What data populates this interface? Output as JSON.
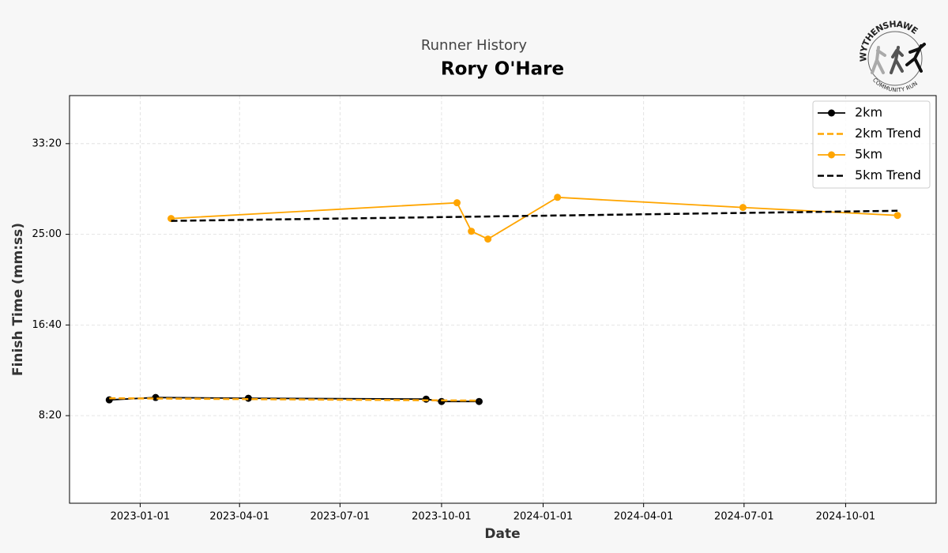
{
  "chart_data": {
    "type": "line",
    "suptitle": "Runner History",
    "title": "Rory O'Hare",
    "logo": {
      "top_text": "WYTHENSHAWE",
      "bottom_text": "COMMUNITY RUN"
    },
    "xlabel": "Date",
    "ylabel": "Finish Time (mm:ss)",
    "xlim": [
      "2022-10-29",
      "2024-12-22"
    ],
    "xticks": [
      "2023-01-01",
      "2023-04-01",
      "2023-07-01",
      "2023-10-01",
      "2024-01-01",
      "2024-04-01",
      "2024-07-01",
      "2024-10-01"
    ],
    "ylim": [
      17,
      2265
    ],
    "yticks": [
      {
        "value": 500,
        "label": "8:20"
      },
      {
        "value": 1000,
        "label": "16:40"
      },
      {
        "value": 1500,
        "label": "25:00"
      },
      {
        "value": 2000,
        "label": "33:20"
      }
    ],
    "grid": true,
    "legend": "upper right",
    "series": [
      {
        "name": "2km",
        "color": "#000000",
        "linestyle": "solid",
        "marker": true,
        "x": [
          "2022-12-04",
          "2023-01-15",
          "2023-04-09",
          "2023-09-17",
          "2023-10-01",
          "2023-11-04"
        ],
        "values": [
          587,
          600,
          596,
          591,
          578,
          578
        ]
      },
      {
        "name": "2km Trend",
        "color": "#ffa500",
        "linestyle": "dashed",
        "marker": false,
        "x": [
          "2022-12-04",
          "2023-11-04"
        ],
        "values": [
          596,
          583
        ]
      },
      {
        "name": "5km",
        "color": "#ffa500",
        "linestyle": "solid",
        "marker": true,
        "x": [
          "2023-01-29",
          "2023-10-15",
          "2023-10-28",
          "2023-11-12",
          "2024-01-14",
          "2024-06-30",
          "2024-11-17"
        ],
        "values": [
          1587,
          1674,
          1517,
          1474,
          1704,
          1648,
          1604
        ]
      },
      {
        "name": "5km Trend",
        "color": "#000000",
        "linestyle": "dashed",
        "marker": false,
        "x": [
          "2023-01-29",
          "2024-11-17"
        ],
        "values": [
          1574,
          1630
        ]
      }
    ]
  }
}
